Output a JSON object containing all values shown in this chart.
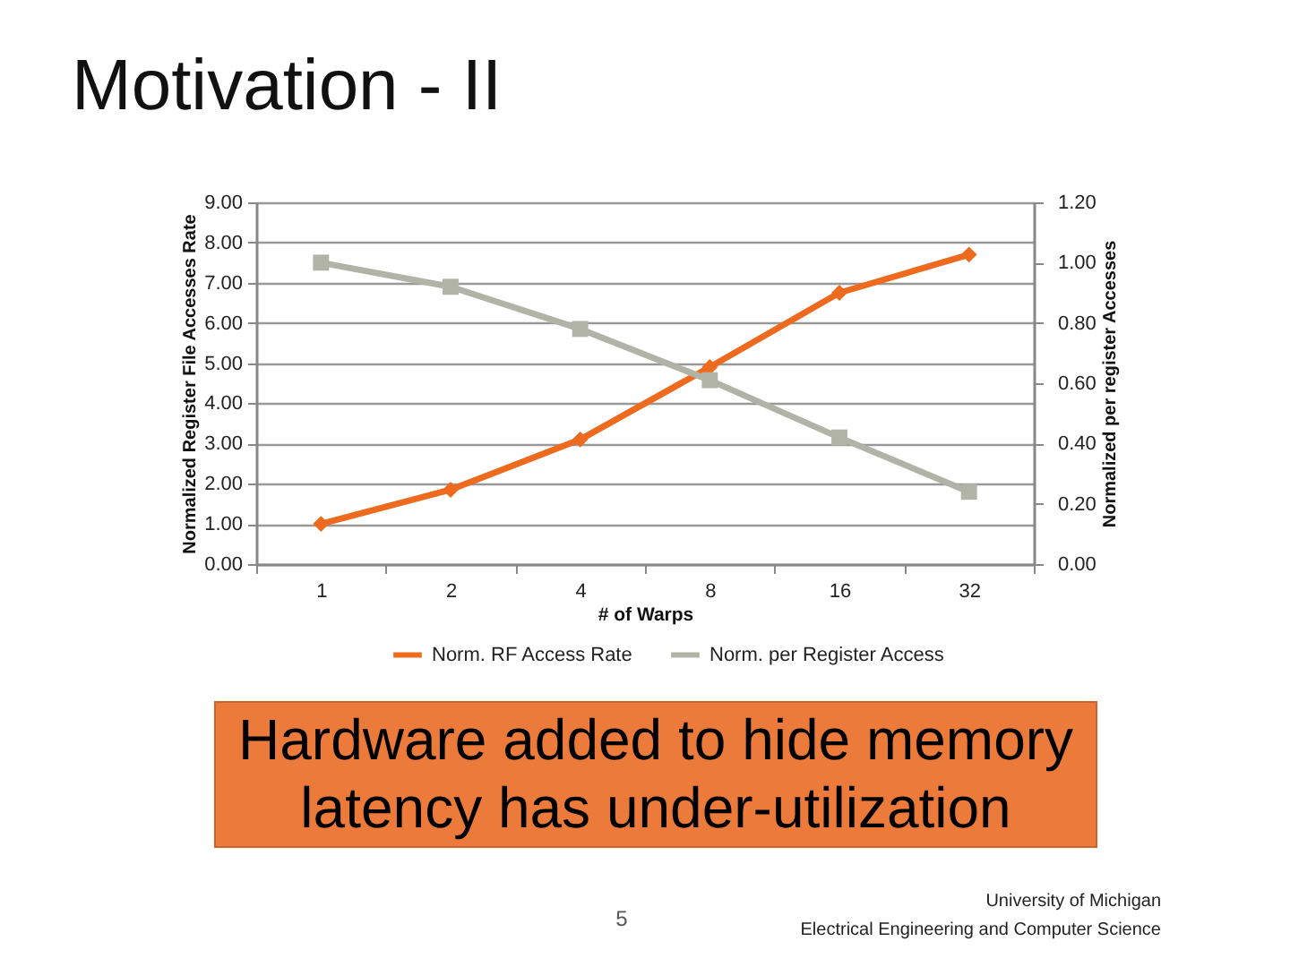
{
  "chart_data": {
    "type": "line",
    "title": "Motivation - II",
    "xlabel": "# of Warps",
    "ylabel": "Normalized Register File Accesses Rate",
    "y2label": "Normalized per register Accesses",
    "categories": [
      "1",
      "2",
      "4",
      "8",
      "16",
      "32"
    ],
    "series": [
      {
        "name": "Norm. RF Access Rate",
        "color": "#ee6a1f",
        "marker": "diamond",
        "values": [
          1.0,
          1.85,
          3.1,
          4.9,
          6.75,
          7.7
        ]
      },
      {
        "name": "Norm. per Register Access",
        "color": "#b0b3a6",
        "marker": "square",
        "axis": "y2",
        "values": [
          1.0,
          0.92,
          0.78,
          0.61,
          0.42,
          0.24
        ]
      }
    ],
    "ylim": [
      0,
      9
    ],
    "yticks": [
      {
        "value": 0,
        "label": "0.00"
      },
      {
        "value": 1,
        "label": "1.00"
      },
      {
        "value": 2,
        "label": "2.00"
      },
      {
        "value": 3,
        "label": "3.00"
      },
      {
        "value": 4,
        "label": "4.00"
      },
      {
        "value": 5,
        "label": "5.00"
      },
      {
        "value": 6,
        "label": "6.00"
      },
      {
        "value": 7,
        "label": "7.00"
      },
      {
        "value": 8,
        "label": "8.00"
      },
      {
        "value": 9,
        "label": "9.00"
      }
    ],
    "y2lim": [
      0,
      1.2
    ],
    "y2ticks": [
      {
        "value": 0,
        "label": "0.00"
      },
      {
        "value": 0.2,
        "label": "0.20"
      },
      {
        "value": 0.4,
        "label": "0.40"
      },
      {
        "value": 0.6,
        "label": "0.60"
      },
      {
        "value": 0.8,
        "label": "0.80"
      },
      {
        "value": 1.0,
        "label": "1.00"
      },
      {
        "value": 1.2,
        "label": "1.20"
      }
    ],
    "grid": "y",
    "legend": "bottom",
    "annotations": [
      "Hardware added to hide memory\nlatency has under-utilization",
      "5",
      "University of Michigan",
      "Electrical Engineering and Computer Science"
    ]
  }
}
